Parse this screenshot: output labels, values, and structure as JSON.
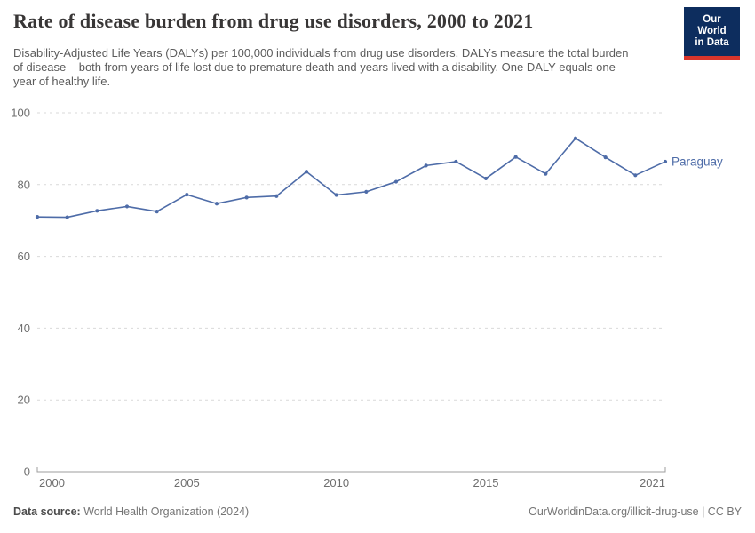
{
  "header": {
    "title": "Rate of disease burden from drug use disorders, 2000 to 2021",
    "subtitle": "Disability-Adjusted Life Years (DALYs) per 100,000 individuals from drug use disorders. DALYs measure the total burden of disease – both from years of life lost due to premature death and years lived with a disability. One DALY equals one year of healthy life.",
    "logo": {
      "line1": "Our World",
      "line2": "in Data",
      "bg_color": "#0d2d5e",
      "stripe_color": "#d8352b"
    }
  },
  "chart_data": {
    "type": "line",
    "title": "Rate of disease burden from drug use disorders, 2000 to 2021",
    "xlabel": "",
    "ylabel": "",
    "x": [
      2000,
      2001,
      2002,
      2003,
      2004,
      2005,
      2006,
      2007,
      2008,
      2009,
      2010,
      2011,
      2012,
      2013,
      2014,
      2015,
      2016,
      2017,
      2018,
      2019,
      2020,
      2021
    ],
    "series": [
      {
        "name": "Paraguay",
        "color": "#4e6ca8",
        "values": [
          71.0,
          70.9,
          72.7,
          73.9,
          72.5,
          77.2,
          74.7,
          76.4,
          76.8,
          83.6,
          77.1,
          78.0,
          80.8,
          85.3,
          86.4,
          81.7,
          87.7,
          83.0,
          92.9,
          87.6,
          82.6,
          86.4
        ]
      }
    ],
    "ylim": [
      0,
      100
    ],
    "yticks": [
      0,
      20,
      40,
      60,
      80,
      100
    ],
    "xticks": [
      2000,
      2005,
      2010,
      2015,
      2021
    ],
    "grid": "horizontal-dashed",
    "legend_position": "end-of-line-label",
    "colors": {
      "grid": "#d9d9d9",
      "axis": "#9d9d9d",
      "tick_label": "#6e6e6e"
    }
  },
  "footer": {
    "source_label": "Data source:",
    "source_value": "World Health Organization (2024)",
    "link": "OurWorldinData.org/illicit-drug-use | CC BY"
  }
}
